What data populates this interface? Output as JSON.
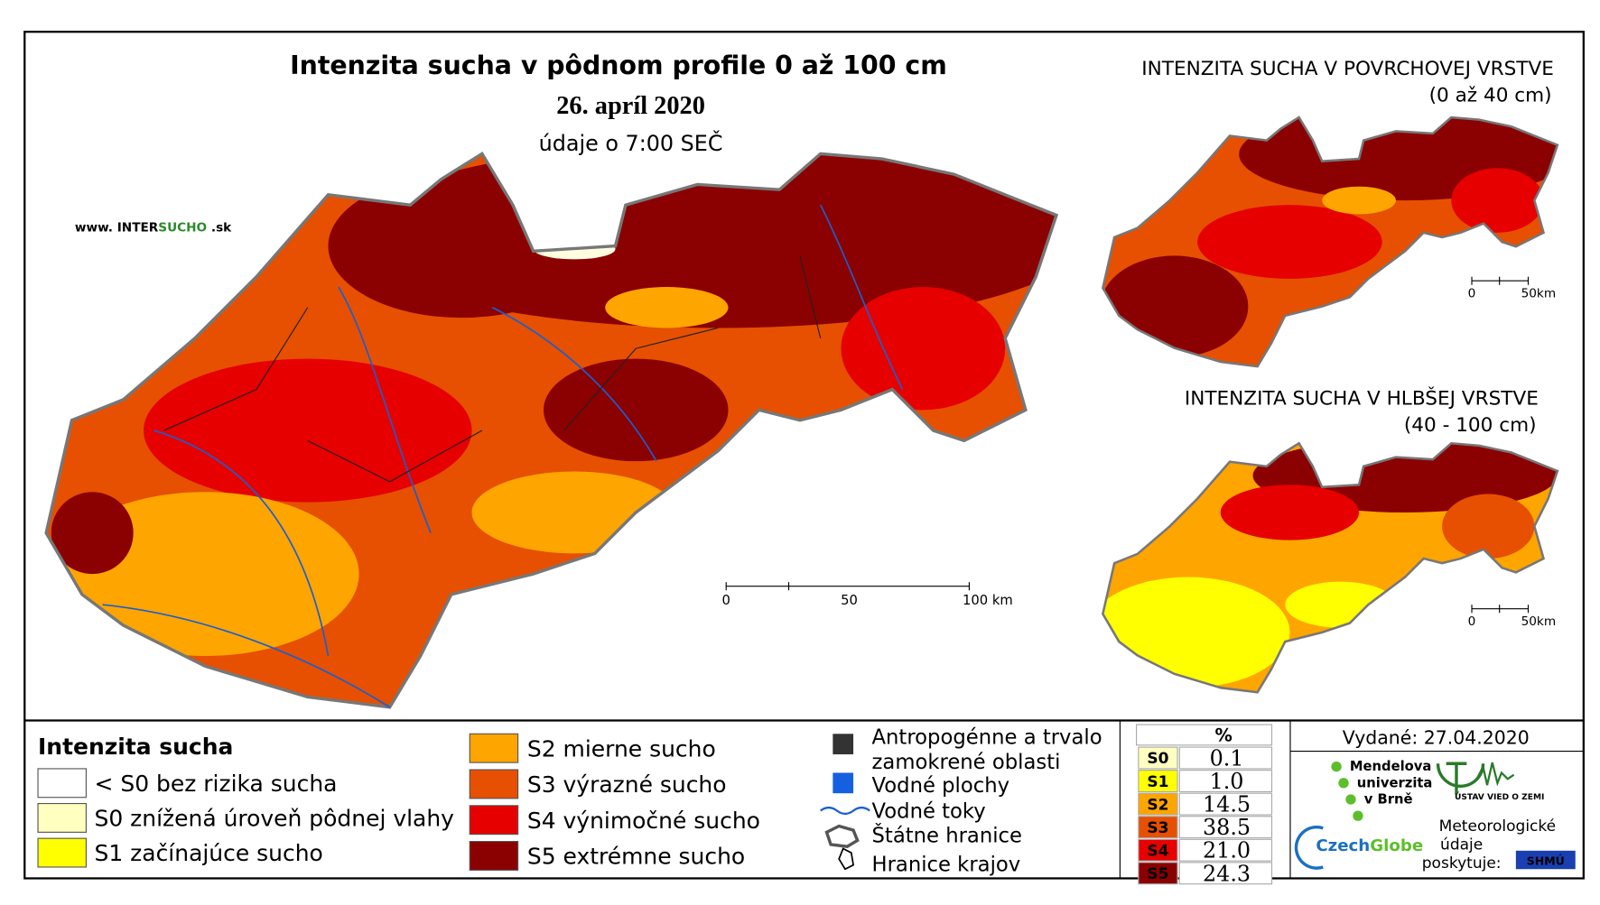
{
  "main_map": {
    "title": "Intenzita sucha v pôdnom profile 0 až 100 cm",
    "date": "26. apríl 2020",
    "note": "údaje o 7:00 SEČ",
    "website": {
      "prefix": "www. INTER",
      "highlight": "SUCHO",
      "suffix": " .sk"
    },
    "scale": [
      "0",
      "50",
      "100 km"
    ]
  },
  "inset_top": {
    "title": "INTENZITA SUCHA V POVRCHOVEJ VRSTVE",
    "subtitle": "(0 až 40 cm)",
    "scale": [
      "0",
      "50km"
    ]
  },
  "inset_bottom": {
    "title": "INTENZITA SUCHA V HLBŠEJ VRSTVE",
    "subtitle": "(40 - 100 cm)",
    "scale": [
      "0",
      "50km"
    ]
  },
  "legend": {
    "title": "Intenzita sucha",
    "classes": [
      {
        "label": "< S0 bez rizika sucha",
        "color": "#ffffff"
      },
      {
        "label": "S0 znížená úroveň pôdnej vlahy",
        "color": "#ffffc0"
      },
      {
        "label": "S1 začínajúce sucho",
        "color": "#ffff00"
      },
      {
        "label": "S2 mierne sucho",
        "color": "#ffa500"
      },
      {
        "label": "S3 výrazné sucho",
        "color": "#e65000"
      },
      {
        "label": "S4 výnimočné sucho",
        "color": "#e60000"
      },
      {
        "label": "S5 extrémne sucho",
        "color": "#8b0000"
      }
    ],
    "symbols": [
      {
        "lines": [
          "Antropogénne a trvalo",
          "zamokrené oblasti"
        ]
      },
      {
        "lines": [
          "Vodné plochy"
        ]
      },
      {
        "lines": [
          "Vodné toky"
        ]
      },
      {
        "lines": [
          "Štátne hranice"
        ]
      },
      {
        "lines": [
          "Hranice krajov"
        ]
      }
    ]
  },
  "stats": {
    "header": "%",
    "rows": [
      {
        "code": "S0",
        "value": "0.1",
        "color": "#ffffc0"
      },
      {
        "code": "S1",
        "value": "1.0",
        "color": "#ffff00"
      },
      {
        "code": "S2",
        "value": "14.5",
        "color": "#ffa500"
      },
      {
        "code": "S3",
        "value": "38.5",
        "color": "#e65000"
      },
      {
        "code": "S4",
        "value": "21.0",
        "color": "#e60000"
      },
      {
        "code": "S5",
        "value": "24.3",
        "color": "#8b0000"
      }
    ]
  },
  "footer": {
    "issued": "Vydané: 27.04.2020",
    "mendel": [
      "Mendelova",
      "univerzita",
      "v Brně"
    ],
    "institute": "ÚSTAV VIED O ZEMI",
    "czechglobe": {
      "a": "Czech",
      "b": "Globe"
    },
    "provider": [
      "Meteorologické",
      "údaje",
      "poskytuje:"
    ],
    "shmu": "SHMÚ"
  }
}
